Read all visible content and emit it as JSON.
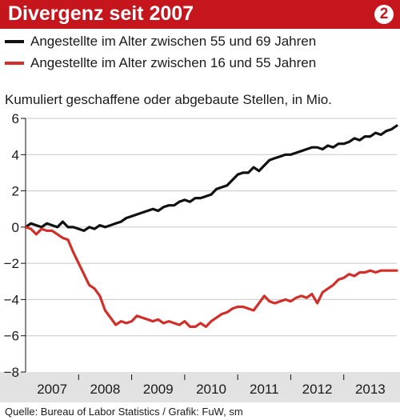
{
  "title": "Divergenz seit 2007",
  "badge": "2",
  "subtitle": "Kumuliert geschaffene oder abgebaute Stellen, in Mio.",
  "source": "Quelle: Bureau of Labor Statistics / Grafik: FuW, sm",
  "colors": {
    "title_bar": "#c4161c",
    "older": "#111111",
    "younger": "#d1302a",
    "axis_band": "#e2e2e2"
  },
  "chart_data": {
    "type": "line",
    "title": "Divergenz seit 2007",
    "ylabel": "Kumuliert geschaffene oder abgebaute Stellen, in Mio.",
    "xlabel": "",
    "ylim": [
      -8,
      6
    ],
    "yticks": [
      6,
      4,
      2,
      0,
      -2,
      -4,
      -6,
      -8
    ],
    "ytick_labels": [
      "6",
      "4",
      "2",
      "0",
      "−2",
      "−4",
      "−6",
      "−8"
    ],
    "xlim": [
      2007.0,
      2014.0
    ],
    "xtick_labels": [
      "2007",
      "2008",
      "2009",
      "2010",
      "2011",
      "2012",
      "2013"
    ],
    "grid": true,
    "legend_position": "top",
    "series": [
      {
        "name": "Angestellte im Alter zwischen 55 und 69 Jahren",
        "color": "#111111",
        "x": [
          2007.0,
          2007.1,
          2007.2,
          2007.3,
          2007.4,
          2007.5,
          2007.6,
          2007.7,
          2007.8,
          2007.9,
          2008.0,
          2008.1,
          2008.2,
          2008.3,
          2008.4,
          2008.5,
          2008.6,
          2008.7,
          2008.8,
          2008.9,
          2009.0,
          2009.1,
          2009.2,
          2009.3,
          2009.4,
          2009.5,
          2009.6,
          2009.7,
          2009.8,
          2009.9,
          2010.0,
          2010.1,
          2010.2,
          2010.3,
          2010.4,
          2010.5,
          2010.6,
          2010.7,
          2010.8,
          2010.9,
          2011.0,
          2011.1,
          2011.2,
          2011.3,
          2011.4,
          2011.5,
          2011.6,
          2011.7,
          2011.8,
          2011.9,
          2012.0,
          2012.1,
          2012.2,
          2012.3,
          2012.4,
          2012.5,
          2012.6,
          2012.7,
          2012.8,
          2012.9,
          2013.0,
          2013.1,
          2013.2,
          2013.3,
          2013.4,
          2013.5,
          2013.6,
          2013.7,
          2013.8,
          2013.9,
          2014.0
        ],
        "y": [
          0.0,
          0.2,
          0.1,
          0.0,
          0.2,
          0.1,
          0.0,
          0.3,
          0.0,
          0.0,
          -0.1,
          -0.2,
          0.0,
          -0.1,
          0.1,
          0.0,
          0.1,
          0.2,
          0.3,
          0.5,
          0.6,
          0.7,
          0.8,
          0.9,
          1.0,
          0.9,
          1.1,
          1.2,
          1.2,
          1.4,
          1.5,
          1.4,
          1.6,
          1.6,
          1.7,
          1.8,
          2.1,
          2.2,
          2.3,
          2.6,
          2.9,
          3.0,
          3.0,
          3.3,
          3.1,
          3.4,
          3.7,
          3.8,
          3.9,
          4.0,
          4.0,
          4.1,
          4.2,
          4.3,
          4.4,
          4.4,
          4.3,
          4.5,
          4.4,
          4.6,
          4.6,
          4.7,
          4.9,
          4.8,
          5.0,
          5.0,
          5.2,
          5.1,
          5.3,
          5.4,
          5.6
        ]
      },
      {
        "name": "Angestellte im Alter zwischen 16 und 55 Jahren",
        "color": "#d1302a",
        "x": [
          2007.0,
          2007.1,
          2007.2,
          2007.3,
          2007.4,
          2007.5,
          2007.6,
          2007.7,
          2007.8,
          2007.9,
          2008.0,
          2008.1,
          2008.2,
          2008.3,
          2008.4,
          2008.5,
          2008.6,
          2008.7,
          2008.8,
          2008.9,
          2009.0,
          2009.1,
          2009.2,
          2009.3,
          2009.4,
          2009.5,
          2009.6,
          2009.7,
          2009.8,
          2009.9,
          2010.0,
          2010.1,
          2010.2,
          2010.3,
          2010.4,
          2010.5,
          2010.6,
          2010.7,
          2010.8,
          2010.9,
          2011.0,
          2011.1,
          2011.2,
          2011.3,
          2011.4,
          2011.5,
          2011.6,
          2011.7,
          2011.8,
          2011.9,
          2012.0,
          2012.1,
          2012.2,
          2012.3,
          2012.4,
          2012.5,
          2012.6,
          2012.7,
          2012.8,
          2012.9,
          2013.0,
          2013.1,
          2013.2,
          2013.3,
          2013.4,
          2013.5,
          2013.6,
          2013.7,
          2013.8,
          2013.9,
          2014.0
        ],
        "y": [
          0.0,
          -0.1,
          -0.4,
          -0.1,
          -0.2,
          -0.2,
          -0.4,
          -0.6,
          -0.7,
          -1.4,
          -2.0,
          -2.6,
          -3.2,
          -3.4,
          -3.8,
          -4.6,
          -5.0,
          -5.4,
          -5.2,
          -5.3,
          -5.2,
          -4.9,
          -5.0,
          -5.1,
          -5.2,
          -5.1,
          -5.3,
          -5.2,
          -5.3,
          -5.4,
          -5.2,
          -5.5,
          -5.5,
          -5.3,
          -5.5,
          -5.2,
          -5.0,
          -4.8,
          -4.7,
          -4.5,
          -4.4,
          -4.4,
          -4.5,
          -4.6,
          -4.2,
          -3.8,
          -4.1,
          -4.2,
          -4.1,
          -4.0,
          -4.1,
          -3.9,
          -3.8,
          -3.9,
          -3.7,
          -4.2,
          -3.6,
          -3.4,
          -3.2,
          -2.9,
          -2.8,
          -2.6,
          -2.7,
          -2.5,
          -2.5,
          -2.4,
          -2.5,
          -2.4,
          -2.4,
          -2.4,
          -2.4
        ]
      }
    ]
  }
}
